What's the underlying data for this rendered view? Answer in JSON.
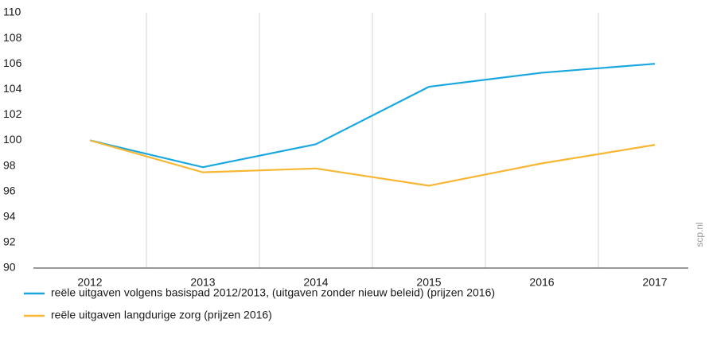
{
  "chart_data": {
    "type": "line",
    "categories": [
      "2012",
      "2013",
      "2014",
      "2015",
      "2016",
      "2017"
    ],
    "series": [
      {
        "name": "reële uitgaven volgens basispad 2012/2013, (uitgaven zonder nieuw beleid) (prijzen 2016)",
        "color": "#1aa7e0",
        "values": [
          100,
          97.9,
          99.7,
          104.2,
          105.3,
          106.0
        ]
      },
      {
        "name": "reële uitgaven langdurige zorg (prijzen 2016)",
        "color": "#f7b733",
        "values": [
          100,
          97.5,
          97.8,
          96.45,
          98.2,
          99.65
        ]
      }
    ],
    "ylim": [
      90,
      110
    ],
    "yticks": [
      90,
      92,
      94,
      96,
      98,
      100,
      102,
      104,
      106,
      108,
      110
    ],
    "watermark": "scp.nl"
  }
}
